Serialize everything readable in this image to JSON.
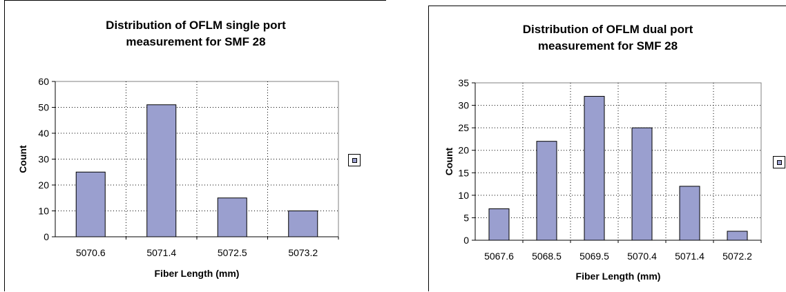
{
  "chart_data": [
    {
      "type": "bar",
      "title_line1": "Distribution of OFLM single port",
      "title_line2": "measurement for SMF 28",
      "xlabel": "Fiber Length (mm)",
      "ylabel": "Count",
      "categories": [
        "5070.6",
        "5071.4",
        "5072.5",
        "5073.2"
      ],
      "values": [
        25,
        51,
        15,
        10
      ],
      "ylim": [
        0,
        60
      ],
      "yticks": [
        "0",
        "10",
        "20",
        "30",
        "40",
        "50",
        "60"
      ],
      "grid": true,
      "legend": "right",
      "bar_color": "#9a9fcf"
    },
    {
      "type": "bar",
      "title_line1": "Distribution of OFLM dual port",
      "title_line2": "measurement for SMF 28",
      "xlabel": "Fiber Length (mm)",
      "ylabel": "Count",
      "categories": [
        "5067.6",
        "5068.5",
        "5069.5",
        "5070.4",
        "5071.4",
        "5072.2"
      ],
      "values": [
        7,
        22,
        32,
        25,
        12,
        2
      ],
      "ylim": [
        0,
        35
      ],
      "yticks": [
        "0",
        "5",
        "10",
        "15",
        "20",
        "25",
        "30",
        "35"
      ],
      "grid": true,
      "legend": "right",
      "bar_color": "#9a9fcf"
    }
  ]
}
